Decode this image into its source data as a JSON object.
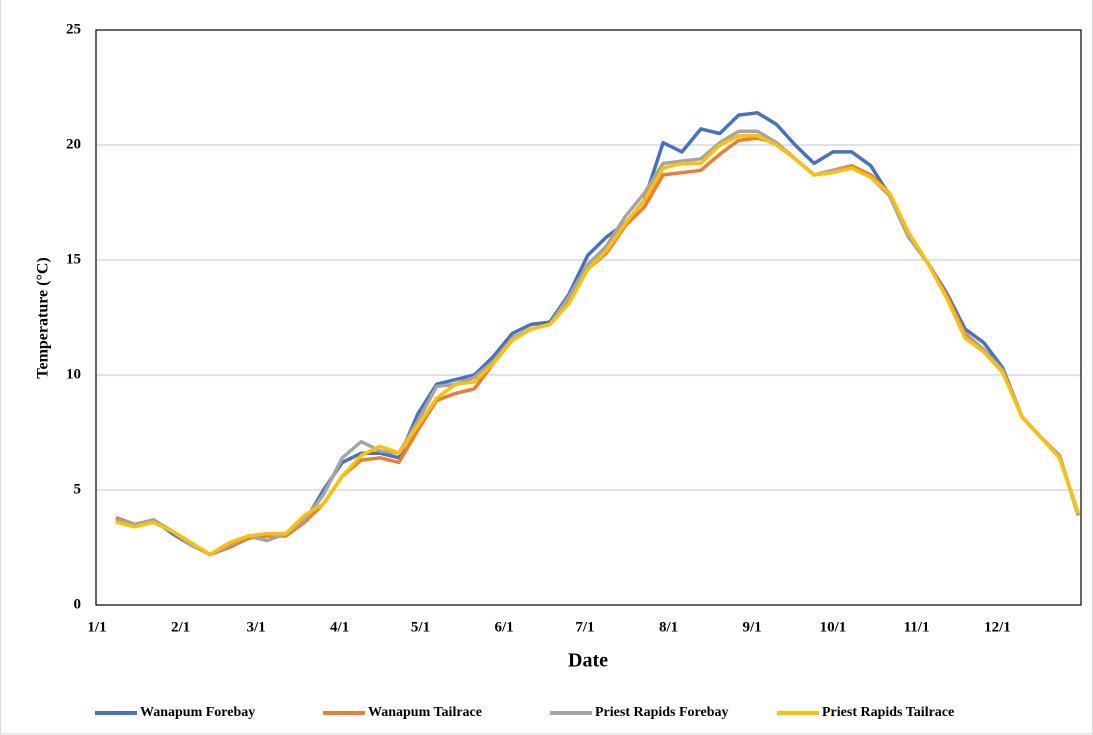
{
  "chart_data": {
    "type": "line",
    "xlabel": "Date",
    "ylabel": "Temperature (°C)",
    "x": [
      8,
      15,
      22,
      29,
      36,
      43,
      50,
      57,
      64,
      71,
      78,
      85,
      92,
      99,
      106,
      113,
      120,
      127,
      134,
      141,
      148,
      155,
      162,
      169,
      176,
      183,
      190,
      197,
      204,
      211,
      218,
      225,
      232,
      239,
      246,
      253,
      260,
      267,
      274,
      281,
      288,
      295,
      302,
      309,
      316,
      323,
      330,
      337,
      344,
      351,
      358,
      365
    ],
    "xlim": [
      1,
      366
    ],
    "xticks": [
      {
        "value": 1,
        "label": "1/1"
      },
      {
        "value": 32,
        "label": "2/1"
      },
      {
        "value": 60,
        "label": "3/1"
      },
      {
        "value": 91,
        "label": "4/1"
      },
      {
        "value": 121,
        "label": "5/1"
      },
      {
        "value": 152,
        "label": "6/1"
      },
      {
        "value": 182,
        "label": "7/1"
      },
      {
        "value": 213,
        "label": "8/1"
      },
      {
        "value": 244,
        "label": "9/1"
      },
      {
        "value": 274,
        "label": "10/1"
      },
      {
        "value": 305,
        "label": "11/1"
      },
      {
        "value": 335,
        "label": "12/1"
      }
    ],
    "ylim": [
      0,
      25
    ],
    "yticks": [
      0,
      5,
      10,
      15,
      20,
      25
    ],
    "grid": true,
    "legend": "bottom",
    "series": [
      {
        "name": "Wanapum Forebay",
        "color": "#4472c4",
        "values": [
          3.8,
          3.5,
          3.7,
          3.1,
          2.6,
          2.2,
          2.5,
          2.9,
          3.1,
          3.0,
          3.6,
          5.0,
          6.2,
          6.6,
          6.6,
          6.4,
          8.3,
          9.6,
          9.8,
          10.0,
          10.8,
          11.8,
          12.2,
          12.3,
          13.5,
          15.2,
          16.0,
          16.6,
          17.6,
          20.1,
          19.7,
          20.7,
          20.5,
          21.3,
          21.4,
          20.9,
          20.0,
          19.2,
          19.7,
          19.7,
          19.1,
          17.8,
          16.0,
          14.9,
          13.6,
          12.0,
          11.4,
          10.3,
          8.2,
          7.3,
          6.5,
          3.9
        ]
      },
      {
        "name": "Wanapum Tailrace",
        "color": "#ed7d31",
        "values": [
          3.8,
          3.5,
          3.6,
          3.2,
          2.6,
          2.2,
          2.5,
          2.9,
          3.0,
          3.0,
          3.6,
          4.4,
          5.6,
          6.3,
          6.4,
          6.2,
          7.6,
          8.9,
          9.2,
          9.4,
          10.5,
          11.6,
          12.0,
          12.2,
          13.2,
          14.6,
          15.3,
          16.5,
          17.3,
          18.7,
          18.8,
          18.9,
          19.6,
          20.2,
          20.3,
          20.1,
          19.4,
          18.7,
          18.9,
          19.1,
          18.7,
          17.9,
          16.1,
          14.9,
          13.5,
          11.8,
          11.1,
          10.2,
          8.2,
          7.3,
          6.5,
          3.9
        ]
      },
      {
        "name": "Priest Rapids Forebay",
        "color": "#a5a5a5",
        "values": [
          3.7,
          3.5,
          3.7,
          3.2,
          2.6,
          2.2,
          2.6,
          3.0,
          2.8,
          3.1,
          3.7,
          4.8,
          6.4,
          7.1,
          6.7,
          6.6,
          8.0,
          9.5,
          9.6,
          9.9,
          10.6,
          11.6,
          12.0,
          12.2,
          13.4,
          14.8,
          15.6,
          16.9,
          17.9,
          19.2,
          19.3,
          19.4,
          20.1,
          20.6,
          20.6,
          20.1,
          19.4,
          18.7,
          18.9,
          19.0,
          18.6,
          17.8,
          16.0,
          14.9,
          13.4,
          11.7,
          11.1,
          10.2,
          8.2,
          7.3,
          6.5,
          3.9
        ]
      },
      {
        "name": "Priest Rapids Tailrace",
        "color": "#ffc000",
        "values": [
          3.6,
          3.4,
          3.6,
          3.2,
          2.7,
          2.2,
          2.7,
          3.0,
          3.1,
          3.1,
          3.9,
          4.4,
          5.6,
          6.5,
          6.9,
          6.6,
          7.8,
          9.0,
          9.6,
          9.7,
          10.5,
          11.5,
          12.0,
          12.2,
          13.1,
          14.6,
          15.4,
          16.6,
          17.6,
          19.0,
          19.2,
          19.2,
          20.0,
          20.4,
          20.4,
          20.0,
          19.4,
          18.7,
          18.8,
          19.0,
          18.6,
          17.9,
          16.2,
          14.9,
          13.4,
          11.6,
          11.0,
          10.1,
          8.2,
          7.3,
          6.4,
          4.0
        ]
      }
    ]
  }
}
